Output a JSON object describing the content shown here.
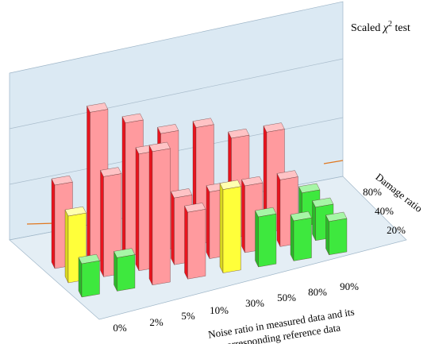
{
  "chart_data": {
    "type": "bar",
    "subtype": "3d-bar",
    "title": "Scaled χ² test",
    "title_parts": {
      "prefix": "Scaled ",
      "symbol": "χ",
      "sup": "2",
      "suffix": " test"
    },
    "x_axis": {
      "label_line1": "Noise ratio in measured data and its",
      "label_line2": "corresponding reference data",
      "categories": [
        "0%",
        "2%",
        "5%",
        "10%",
        "30%",
        "50%",
        "80%",
        "90%"
      ]
    },
    "z_axis": {
      "label": "Damage ratio",
      "categories": [
        "20%",
        "40%",
        "80%"
      ]
    },
    "ylim": [
      0,
      5
    ],
    "grid": true,
    "series": [
      {
        "name": "20%",
        "values": [
          1.0,
          1.0,
          4.0,
          2.0,
          2.5,
          1.5,
          1.2,
          1.0
        ],
        "colors": [
          "green",
          "green",
          "red",
          "red",
          "yellow",
          "green",
          "green",
          "green"
        ]
      },
      {
        "name": "40%",
        "values": [
          2.0,
          3.0,
          3.5,
          2.0,
          2.0,
          2.0,
          2.0,
          1.0
        ],
        "colors": [
          "yellow",
          "red",
          "red",
          "red",
          "red",
          "red",
          "red",
          "green"
        ]
      },
      {
        "name": "80%",
        "values": [
          2.5,
          4.5,
          4.0,
          3.5,
          3.5,
          3.0,
          3.0,
          1.0
        ],
        "colors": [
          "red",
          "red",
          "red",
          "red",
          "red",
          "red",
          "red",
          "green"
        ]
      }
    ],
    "colors": {
      "red": "#f0303a",
      "green": "#38e038",
      "yellow": "#ffff30"
    }
  }
}
